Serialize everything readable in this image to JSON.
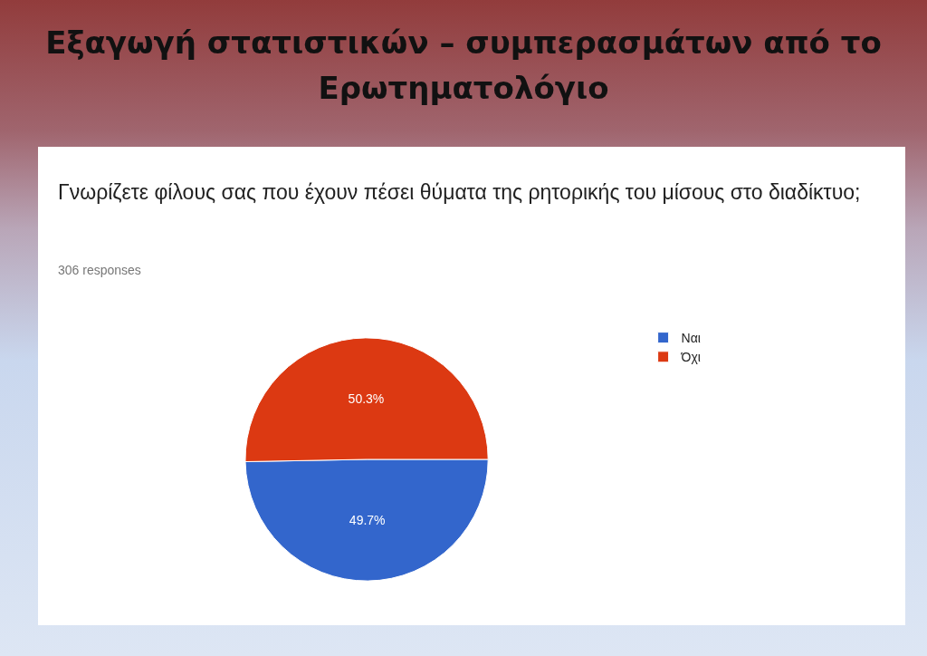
{
  "chart_data": {
    "type": "pie",
    "title": "Εξαγωγή στατιστικών – συμπερασμάτων από το Ερωτηματολόγιο",
    "subtitle": "Γνωρίζετε φίλους σας που έχουν πέσει θύματα της ρητορικής του μίσους στο διαδίκτυο;",
    "annotations": [
      "306 responses"
    ],
    "categories": [
      "Ναι",
      "Όχι"
    ],
    "values": [
      49.7,
      50.3
    ],
    "colors": [
      "#3366cc",
      "#dc3912"
    ],
    "value_labels": [
      "49.7%",
      "50.3%"
    ],
    "legend": "top right"
  }
}
